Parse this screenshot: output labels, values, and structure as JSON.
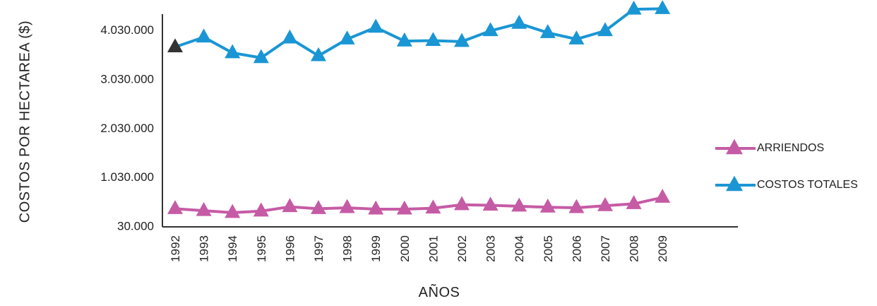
{
  "chart_data": {
    "type": "line",
    "xlabel": "AÑOS",
    "ylabel": "COSTOS POR HECTAREA ($)",
    "categories": [
      "1992",
      "1993",
      "1994",
      "1995",
      "1996",
      "1997",
      "1998",
      "1999",
      "2000",
      "2001",
      "2002",
      "2003",
      "2004",
      "2005",
      "2006",
      "2007",
      "2008",
      "2009"
    ],
    "yticks": [
      30000,
      1030000,
      2030000,
      3030000,
      4030000
    ],
    "ytick_labels": [
      "30.000",
      "1.030.000",
      "2.030.000",
      "3.030.000",
      "4.030.000"
    ],
    "ylim": [
      30000,
      4630000
    ],
    "legend_position": "right",
    "grid": false,
    "series": [
      {
        "name": "ARRIENDOS",
        "color": "#c65ba5",
        "marker": "triangle",
        "values": [
          400000,
          360000,
          320000,
          350000,
          440000,
          400000,
          420000,
          390000,
          390000,
          410000,
          480000,
          470000,
          450000,
          430000,
          420000,
          460000,
          500000,
          630000
        ]
      },
      {
        "name": "COSTOS TOTALES",
        "color": "#1a96d4",
        "marker": "triangle",
        "first_marker_color": "#333333",
        "values": [
          3700000,
          3900000,
          3580000,
          3480000,
          3880000,
          3520000,
          3860000,
          4100000,
          3820000,
          3830000,
          3810000,
          4030000,
          4180000,
          3990000,
          3860000,
          4030000,
          4470000,
          4480000
        ]
      }
    ]
  }
}
